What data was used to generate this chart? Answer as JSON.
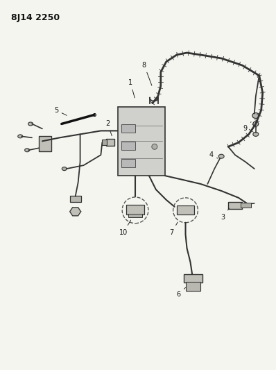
{
  "title": "8J14 2250",
  "bg_color": "#f5f5f0",
  "line_color": "#333333",
  "fig_width": 3.98,
  "fig_height": 5.33,
  "dpi": 100
}
